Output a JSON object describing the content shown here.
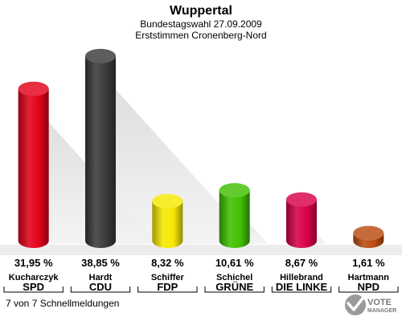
{
  "header": {
    "title": "Wuppertal",
    "subtitle1": "Bundestagswahl 27.09.2009",
    "subtitle2": "Erststimmen Cronenberg-Nord"
  },
  "footer": {
    "status": "7 von 7 Schnellmeldungen"
  },
  "logo": {
    "line1": "VOTE",
    "line2": "MANAGER"
  },
  "chart_data": {
    "type": "bar",
    "categories": [
      "SPD",
      "CDU",
      "FDP",
      "GRÜNE",
      "DIE LINKE",
      "NPD"
    ],
    "candidates": [
      "Kucharczyk",
      "Hardt",
      "Schiffer",
      "Schichel",
      "Hillebrand",
      "Hartmann"
    ],
    "values": [
      31.95,
      38.85,
      8.32,
      10.61,
      8.67,
      1.61
    ],
    "value_labels": [
      "31,95 %",
      "38,85 %",
      "8,32 %",
      "10,61 %",
      "8,67 %",
      "1,61 %"
    ],
    "colors": [
      "#e2001a",
      "#3a3a3a",
      "#f5e800",
      "#3fc000",
      "#d8004b",
      "#b94c10"
    ],
    "ylim": [
      0,
      40
    ],
    "grid": false,
    "legend": "none"
  }
}
